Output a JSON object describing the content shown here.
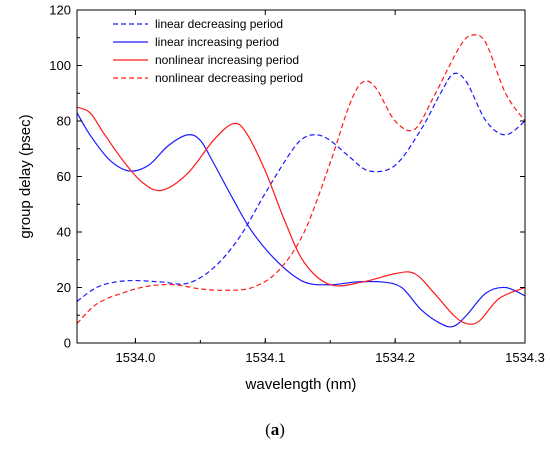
{
  "caption": {
    "open": "(",
    "letter": "a",
    "close": ")"
  },
  "chart_data": {
    "type": "line",
    "xlabel": "wavelength (nm)",
    "ylabel": "group delay (psec)",
    "xlim": [
      1533.955,
      1534.3
    ],
    "ylim": [
      0,
      120
    ],
    "xticks": [
      1534.0,
      1534.1,
      1534.2,
      1534.3
    ],
    "xtick_labels": [
      "1534.0",
      "1534.1",
      "1534.2",
      "1534.3"
    ],
    "yticks": [
      0,
      20,
      40,
      60,
      80,
      100,
      120
    ],
    "ytick_labels": [
      "0",
      "20",
      "40",
      "60",
      "80",
      "100",
      "120"
    ],
    "grid": false,
    "legend_position": "top-left",
    "series": [
      {
        "name": "linear decreasing period",
        "color": "#1a1aff",
        "dash": "dashed",
        "x": [
          1533.955,
          1533.97,
          1533.985,
          1534.0,
          1534.02,
          1534.04,
          1534.06,
          1534.08,
          1534.1,
          1534.12,
          1534.13,
          1534.14,
          1534.15,
          1534.165,
          1534.18,
          1534.2,
          1534.22,
          1534.235,
          1534.245,
          1534.255,
          1534.27,
          1534.285,
          1534.3
        ],
        "y": [
          15,
          20,
          22,
          22.5,
          22,
          21.5,
          27,
          38,
          54,
          69,
          74,
          75,
          73,
          67,
          62,
          64,
          77,
          90,
          97,
          94,
          80,
          75,
          80
        ]
      },
      {
        "name": "linear increasing period",
        "color": "#1a1aff",
        "dash": "solid",
        "x": [
          1533.955,
          1533.965,
          1533.98,
          1533.995,
          1534.01,
          1534.025,
          1534.04,
          1534.05,
          1534.06,
          1534.075,
          1534.09,
          1534.11,
          1534.13,
          1534.15,
          1534.17,
          1534.19,
          1534.205,
          1534.22,
          1534.235,
          1534.245,
          1534.255,
          1534.27,
          1534.285,
          1534.3
        ],
        "y": [
          83,
          75,
          66,
          62,
          64,
          71,
          75,
          73,
          65,
          52,
          40,
          29,
          22,
          21,
          22,
          22,
          20,
          12,
          7,
          6,
          10,
          18,
          20,
          17
        ]
      },
      {
        "name": "nonlinear increasing period",
        "color": "#ff1a1a",
        "dash": "solid",
        "x": [
          1533.955,
          1533.965,
          1533.975,
          1533.99,
          1534.005,
          1534.02,
          1534.04,
          1534.06,
          1534.075,
          1534.085,
          1534.1,
          1534.115,
          1534.13,
          1534.15,
          1534.175,
          1534.2,
          1534.215,
          1534.23,
          1534.245,
          1534.255,
          1534.265,
          1534.28,
          1534.3
        ],
        "y": [
          85,
          83,
          76,
          66,
          58,
          55,
          61,
          73,
          79,
          76,
          62,
          44,
          29,
          21,
          22,
          25,
          25,
          18,
          10,
          7,
          8,
          16,
          20
        ]
      },
      {
        "name": "nonlinear decreasing period",
        "color": "#ff1a1a",
        "dash": "dashed",
        "x": [
          1533.955,
          1533.97,
          1533.99,
          1534.01,
          1534.03,
          1534.05,
          1534.07,
          1534.09,
          1534.11,
          1534.13,
          1534.15,
          1534.165,
          1534.175,
          1534.185,
          1534.2,
          1534.215,
          1534.23,
          1534.25,
          1534.26,
          1534.27,
          1534.285,
          1534.3
        ],
        "y": [
          7,
          14,
          18,
          20.5,
          21,
          19.5,
          19,
          20,
          26,
          40,
          65,
          86,
          94,
          92,
          80,
          77,
          89,
          107,
          111,
          108,
          90,
          80
        ]
      }
    ]
  }
}
